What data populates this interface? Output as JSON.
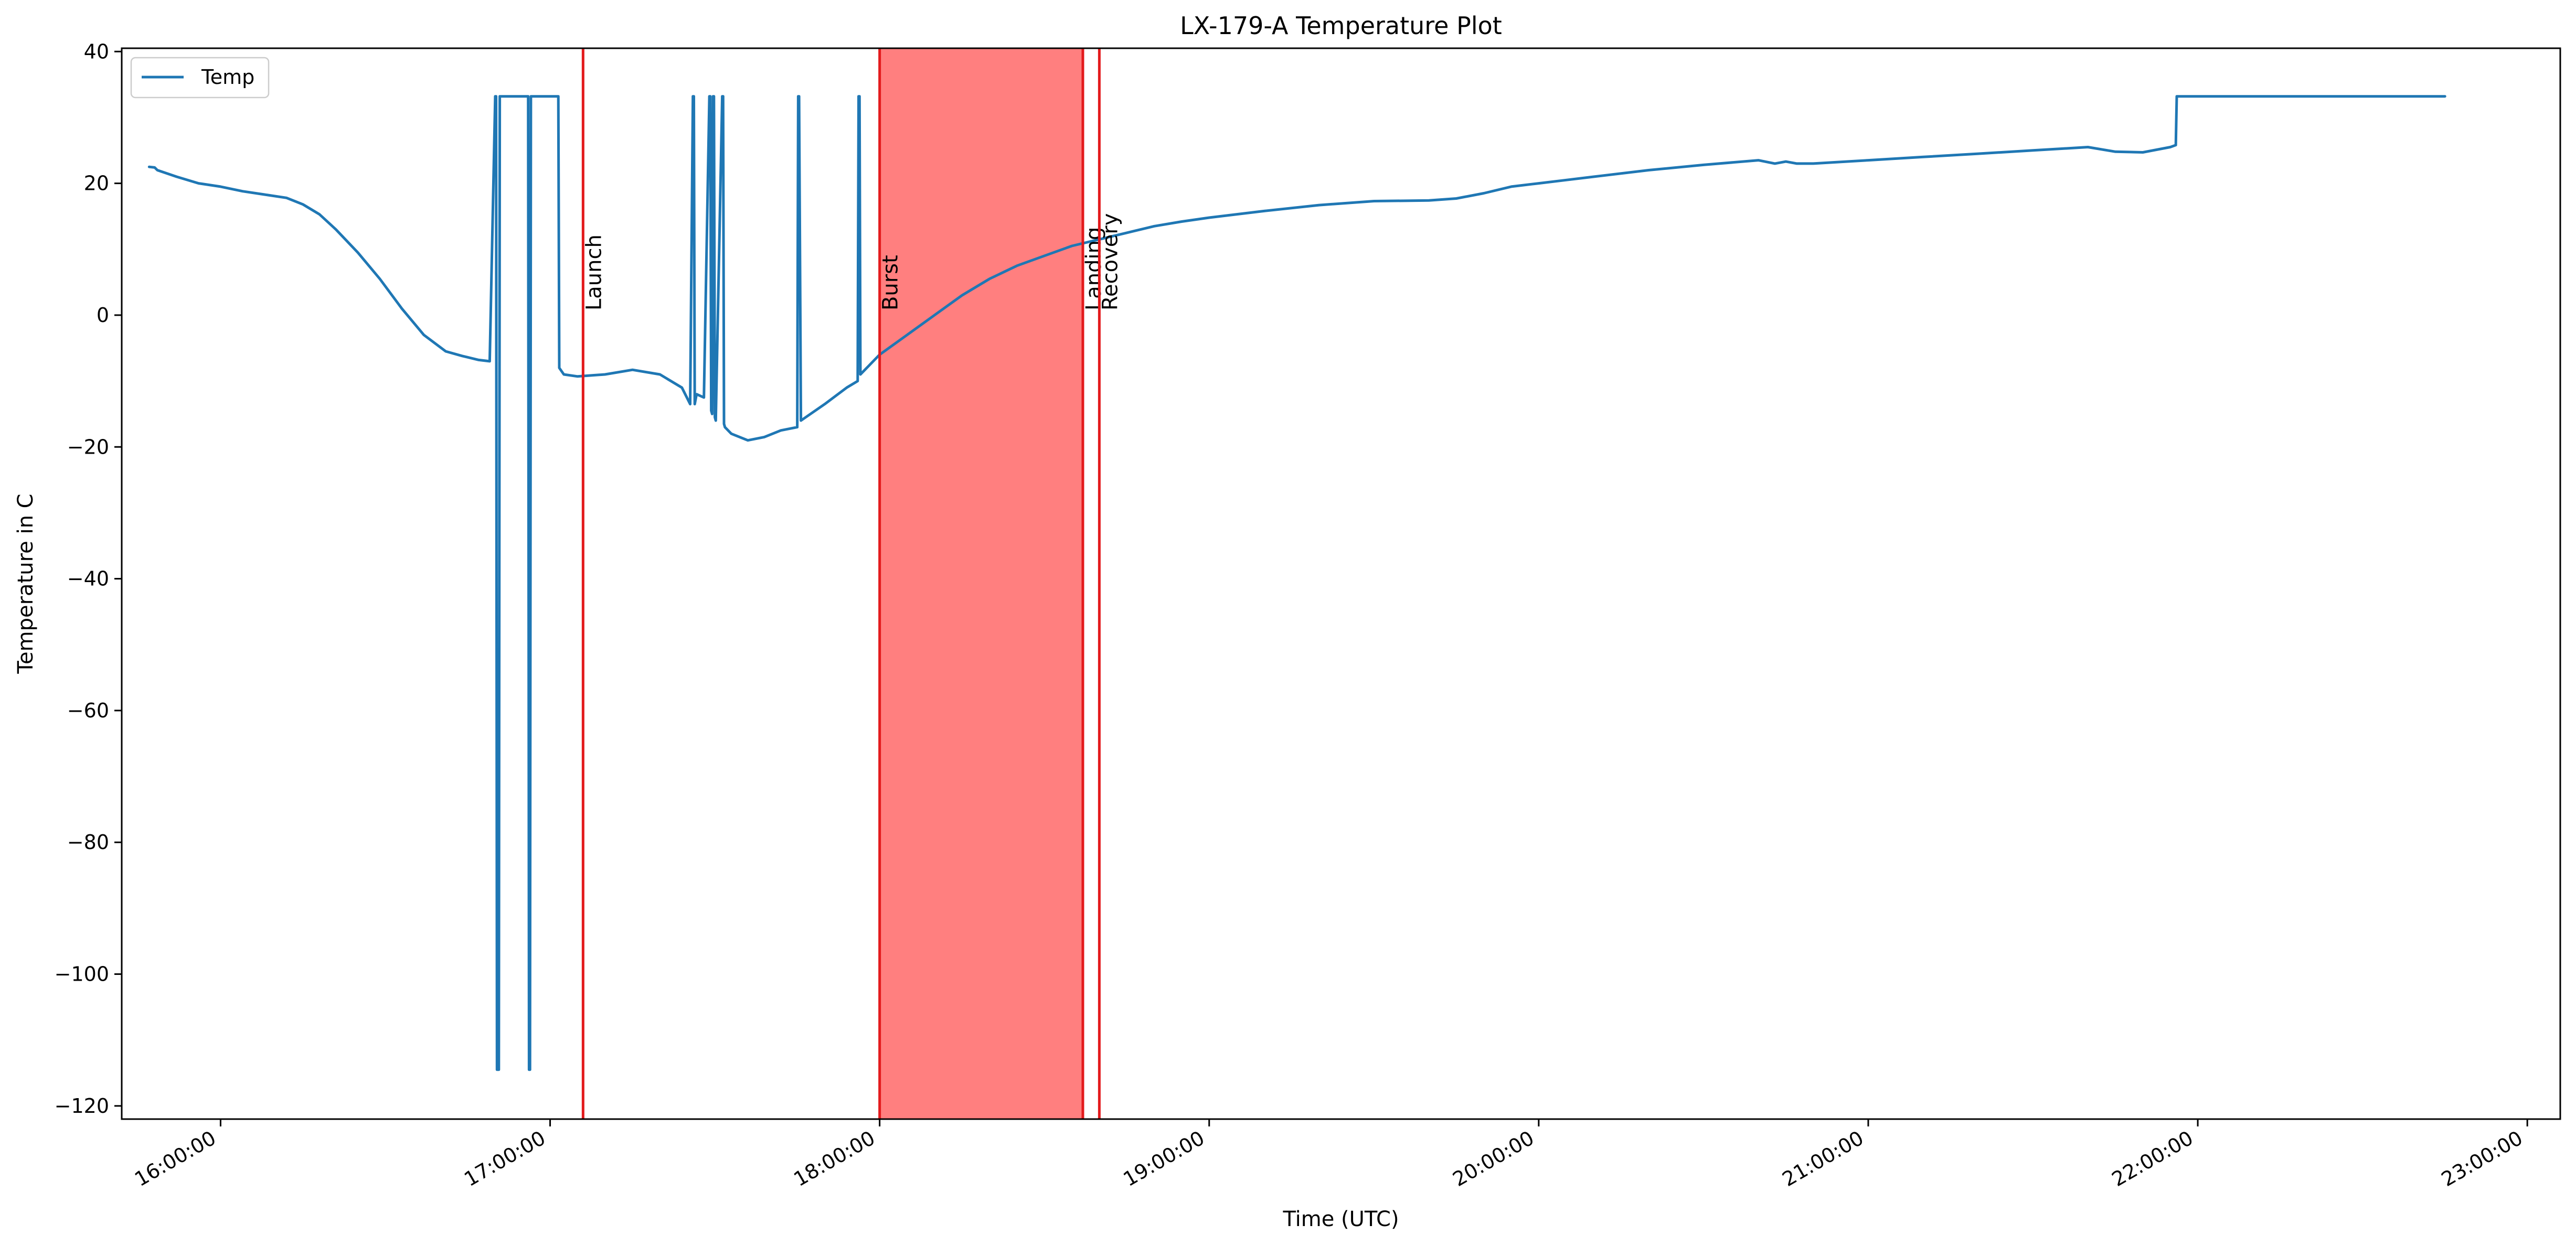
{
  "chart_data": {
    "type": "line",
    "title": "LX-179-A Temperature Plot",
    "xlabel": "Time (UTC)",
    "ylabel": "Temperature in C",
    "x_range": [
      "15:42:00",
      "23:06:00"
    ],
    "ylim": [
      -122,
      40.5
    ],
    "x_ticks": [
      "16:00:00",
      "17:00:00",
      "18:00:00",
      "19:00:00",
      "20:00:00",
      "21:00:00",
      "22:00:00",
      "23:00:00"
    ],
    "y_ticks": [
      40,
      20,
      0,
      -20,
      -40,
      -60,
      -80,
      -100,
      -120
    ],
    "y_tick_labels": [
      "40",
      "20",
      "0",
      "−20",
      "−40",
      "−60",
      "−80",
      "−100",
      "−120"
    ],
    "grid": false,
    "legend": {
      "position": "top-left",
      "entries": [
        "Temp"
      ]
    },
    "colors": {
      "series": "#1f77b4",
      "event_line": "#e31a1c",
      "shade": "#ff7f7f"
    },
    "series": [
      {
        "name": "Temp",
        "x": [
          "15:47:00",
          "15:48:00",
          "15:48:30",
          "15:52:00",
          "15:56:00",
          "16:00:00",
          "16:04:00",
          "16:08:00",
          "16:12:00",
          "16:15:00",
          "16:18:00",
          "16:21:00",
          "16:25:00",
          "16:29:00",
          "16:33:00",
          "16:37:00",
          "16:41:00",
          "16:44:00",
          "16:47:00",
          "16:49:00",
          "16:50:00",
          "16:50:10",
          "16:50:20",
          "16:50:40",
          "16:50:50",
          "16:51:00",
          "16:51:10",
          "16:51:30",
          "16:56:00",
          "16:56:10",
          "16:56:20",
          "16:56:30",
          "17:01:30",
          "17:01:40",
          "17:02:30",
          "17:05:00",
          "17:10:00",
          "17:15:00",
          "17:20:00",
          "17:24:00",
          "17:25:30",
          "17:26:00",
          "17:26:10",
          "17:26:20",
          "17:26:40",
          "17:28:00",
          "17:29:00",
          "17:29:10",
          "17:29:20",
          "17:29:30",
          "17:29:40",
          "17:29:50",
          "17:30:00",
          "17:30:10",
          "17:31:20",
          "17:31:30",
          "17:31:40",
          "17:31:50",
          "17:33:00",
          "17:36:00",
          "17:39:00",
          "17:42:00",
          "17:45:00",
          "17:45:10",
          "17:45:20",
          "17:45:40",
          "17:50:00",
          "17:54:00",
          "17:56:00",
          "17:56:10",
          "17:56:20",
          "17:56:30",
          "18:00:00",
          "18:05:00",
          "18:10:00",
          "18:15:00",
          "18:20:00",
          "18:25:00",
          "18:30:00",
          "18:35:00",
          "18:40:00",
          "18:45:00",
          "18:50:00",
          "18:55:00",
          "19:00:00",
          "19:10:00",
          "19:20:00",
          "19:30:00",
          "19:40:00",
          "19:45:00",
          "19:50:00",
          "19:55:00",
          "20:00:00",
          "20:05:00",
          "20:10:00",
          "20:20:00",
          "20:30:00",
          "20:40:00",
          "20:43:00",
          "20:45:00",
          "20:47:00",
          "20:50:00",
          "21:00:00",
          "21:10:00",
          "21:20:00",
          "21:30:00",
          "21:40:00",
          "21:45:00",
          "21:50:00",
          "21:55:00",
          "21:56:00",
          "21:56:10",
          "22:00:00",
          "22:30:00",
          "22:45:00"
        ],
        "y": [
          22.5,
          22.4,
          22.0,
          21.0,
          20.0,
          19.5,
          18.8,
          18.3,
          17.8,
          16.8,
          15.3,
          13.0,
          9.5,
          5.5,
          1.0,
          -3.0,
          -5.5,
          -6.2,
          -6.8,
          -7.0,
          33.2,
          33.2,
          -114.5,
          -114.5,
          33.2,
          33.2,
          33.2,
          33.2,
          33.2,
          -114.5,
          -114.5,
          33.2,
          33.2,
          -8.0,
          -9.0,
          -9.3,
          -9.0,
          -8.3,
          -9.0,
          -11.0,
          -13.5,
          33.2,
          33.2,
          -13.5,
          -12.0,
          -12.5,
          33.2,
          33.2,
          -14.5,
          -15.0,
          33.2,
          33.2,
          -15.5,
          -16.0,
          33.2,
          33.2,
          -16.5,
          -17.0,
          -18.0,
          -19.0,
          -18.5,
          -17.5,
          -17.0,
          33.2,
          33.2,
          -16.0,
          -13.5,
          -11.0,
          -10.0,
          33.2,
          33.2,
          -9.0,
          -6.0,
          -3.0,
          0.0,
          3.0,
          5.5,
          7.5,
          9.0,
          10.5,
          11.5,
          12.5,
          13.5,
          14.2,
          14.8,
          15.8,
          16.7,
          17.3,
          17.4,
          17.7,
          18.5,
          19.5,
          20.0,
          20.5,
          21.0,
          22.0,
          22.8,
          23.5,
          23.0,
          23.3,
          23.0,
          23.0,
          23.5,
          24.0,
          24.5,
          25.0,
          25.5,
          24.8,
          24.7,
          25.5,
          25.8,
          33.2,
          33.2,
          33.2,
          33.2
        ]
      }
    ],
    "events": [
      {
        "name": "Launch",
        "time": "17:06:00"
      },
      {
        "name": "Burst",
        "time": "18:00:00"
      },
      {
        "name": "Landing",
        "time": "18:37:00"
      },
      {
        "name": "Recovery",
        "time": "18:40:00"
      }
    ],
    "shaded_region": {
      "from": "18:00:00",
      "to": "18:37:00"
    }
  }
}
